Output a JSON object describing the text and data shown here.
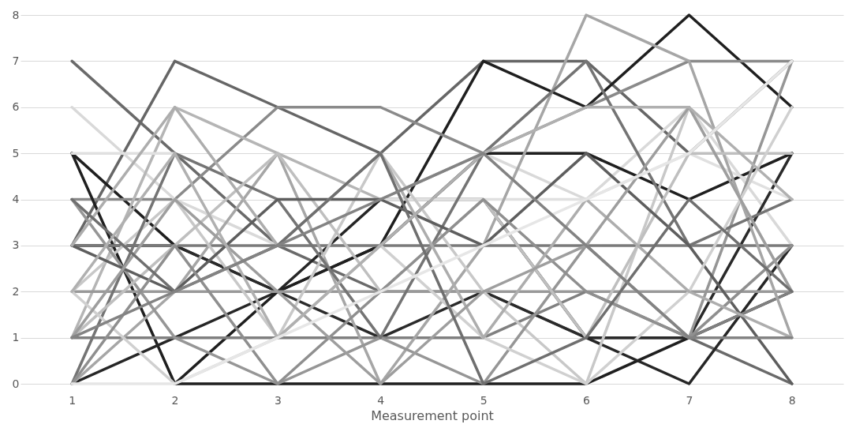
{
  "chart_data": {
    "type": "line",
    "xlabel": "Measurement point",
    "categories": [
      "1",
      "2",
      "3",
      "4",
      "5",
      "6",
      "7",
      "8"
    ],
    "ylim": [
      0,
      8
    ],
    "yticks": [
      0,
      1,
      2,
      3,
      4,
      5,
      6,
      7,
      8
    ],
    "grid": "y",
    "legend": false,
    "marker": "none",
    "line_style": "solid",
    "series": [
      {
        "color": "#6a6a6a",
        "values": [
          7,
          5,
          3,
          2,
          2,
          1,
          1,
          0
        ]
      },
      {
        "color": "#666666",
        "values": [
          3,
          7,
          6,
          5,
          7,
          7,
          5,
          7
        ]
      },
      {
        "color": "#1f1f1f",
        "values": [
          5,
          3,
          2,
          3,
          7,
          6,
          8,
          6
        ]
      },
      {
        "color": "#8a8a8a",
        "values": [
          4,
          4,
          6,
          6,
          5,
          6,
          7,
          7
        ]
      },
      {
        "color": "#d9d9d9",
        "values": [
          6,
          4,
          3,
          3,
          5,
          4,
          6,
          3
        ]
      },
      {
        "color": "#b5b5b5",
        "values": [
          1,
          6,
          5,
          4,
          5,
          5,
          4,
          5
        ]
      },
      {
        "color": "#1f1f1f",
        "values": [
          5,
          0,
          0,
          0,
          0,
          0,
          1,
          2
        ]
      },
      {
        "color": "#262626",
        "values": [
          0,
          1,
          2,
          4,
          4,
          1,
          0,
          3
        ]
      },
      {
        "color": "#2a2a2a",
        "values": [
          3,
          3,
          2,
          1,
          2,
          1,
          1,
          5
        ]
      },
      {
        "color": "#1f1f1f",
        "values": [
          null,
          0,
          2,
          3,
          5,
          5,
          4,
          5
        ]
      },
      {
        "color": "#999999",
        "values": [
          2,
          2,
          2,
          2,
          2,
          2,
          2,
          2
        ]
      },
      {
        "color": "#7a7a7a",
        "values": [
          3,
          3,
          3,
          3,
          3,
          3,
          3,
          3
        ]
      },
      {
        "color": "#808080",
        "values": [
          1,
          1,
          1,
          1,
          1,
          2,
          1,
          2
        ]
      },
      {
        "color": "#e0e0e0",
        "values": [
          5,
          5,
          4,
          4,
          4,
          4,
          5,
          4
        ]
      },
      {
        "color": "#a6a6a6",
        "values": [
          0,
          2,
          5,
          0,
          3,
          8,
          7,
          1
        ]
      },
      {
        "color": "#c8c8c8",
        "values": [
          2,
          4,
          1,
          5,
          2,
          0,
          6,
          2
        ]
      },
      {
        "color": "#969696",
        "values": [
          4,
          1,
          0,
          1,
          0,
          3,
          1,
          7
        ]
      },
      {
        "color": "#747474",
        "values": [
          0,
          5,
          4,
          1,
          5,
          7,
          3,
          4
        ]
      },
      {
        "color": "#bfbfbf",
        "values": [
          1,
          3,
          5,
          2,
          4,
          1,
          5,
          5
        ]
      },
      {
        "color": "#5e5e5e",
        "values": [
          3,
          2,
          4,
          4,
          3,
          5,
          3,
          0
        ]
      },
      {
        "color": "#d0d0d0",
        "values": [
          2,
          0,
          1,
          3,
          1,
          0,
          2,
          6
        ]
      },
      {
        "color": "#8f8f8f",
        "values": [
          0,
          3,
          0,
          2,
          4,
          2,
          1,
          3
        ]
      },
      {
        "color": "#adadad",
        "values": [
          3,
          6,
          3,
          5,
          1,
          4,
          2,
          1
        ]
      },
      {
        "color": "#9e9e9e",
        "values": [
          1,
          4,
          2,
          0,
          2,
          3,
          6,
          2
        ]
      },
      {
        "color": "#6f6f6f",
        "values": [
          4,
          2,
          3,
          5,
          0,
          1,
          4,
          2
        ]
      },
      {
        "color": "#b0b0b0",
        "values": [
          2,
          5,
          1,
          3,
          5,
          6,
          6,
          4
        ]
      },
      {
        "color": "#e6e6e6",
        "values": [
          0,
          0,
          1,
          2,
          3,
          4,
          5,
          7
        ]
      },
      {
        "color": "#838383",
        "values": [
          1,
          2,
          3,
          4,
          5,
          3,
          1,
          1
        ]
      }
    ]
  }
}
